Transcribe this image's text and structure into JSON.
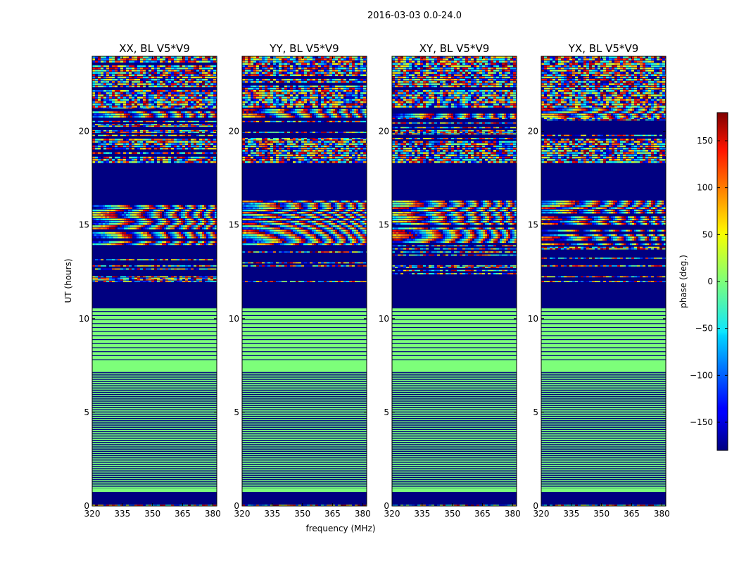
{
  "figure_title": "2016-03-03 0.0-24.0",
  "chart_data": {
    "type": "heatmap",
    "title": "2016-03-03 0.0-24.0",
    "xlabel": "frequency (MHz)",
    "ylabel": "UT (hours)",
    "xlim": [
      320,
      382
    ],
    "ylim": [
      0,
      24
    ],
    "x_ticks": [
      320,
      335,
      350,
      365,
      380
    ],
    "y_ticks": [
      0,
      5,
      10,
      15,
      20
    ],
    "panels": [
      {
        "title": "XX, BL V5*V9",
        "polarization": "XX"
      },
      {
        "title": "YY, BL V5*V9",
        "polarization": "YY"
      },
      {
        "title": "XY, BL V5*V9",
        "polarization": "XY"
      },
      {
        "title": "YX, BL V5*V9",
        "polarization": "YX"
      }
    ],
    "colorbar": {
      "label": "phase (deg.)",
      "range": [
        -180,
        180
      ],
      "ticks": [
        -150,
        -100,
        -50,
        0,
        50,
        100,
        150
      ],
      "tick_labels": [
        "−150",
        "−100",
        "−50",
        "0",
        "50",
        "100",
        "150"
      ],
      "colormap": "jet"
    },
    "bands_hours": [
      {
        "from": 0.0,
        "to": 0.07,
        "kind": "noisy"
      },
      {
        "from": 0.07,
        "to": 0.75,
        "kind": "flagged"
      },
      {
        "from": 0.75,
        "to": 0.95,
        "kind": "zero"
      },
      {
        "from": 0.95,
        "to": 7.2,
        "kind": "striped"
      },
      {
        "from": 7.2,
        "to": 10.55,
        "kind": "zero-lines"
      },
      {
        "from": 10.55,
        "to": 12.0,
        "kind": "flagged"
      },
      {
        "from": 12.0,
        "to": 14.0,
        "kind": "sparse"
      },
      {
        "from": 14.0,
        "to": 16.3,
        "kind": "fringes"
      },
      {
        "from": 16.3,
        "to": 18.3,
        "kind": "flagged"
      },
      {
        "from": 18.3,
        "to": 19.6,
        "kind": "noisy"
      },
      {
        "from": 19.6,
        "to": 20.8,
        "kind": "sparse"
      },
      {
        "from": 20.8,
        "to": 21.3,
        "kind": "fringes"
      },
      {
        "from": 21.3,
        "to": 24.0,
        "kind": "noisy"
      }
    ]
  }
}
